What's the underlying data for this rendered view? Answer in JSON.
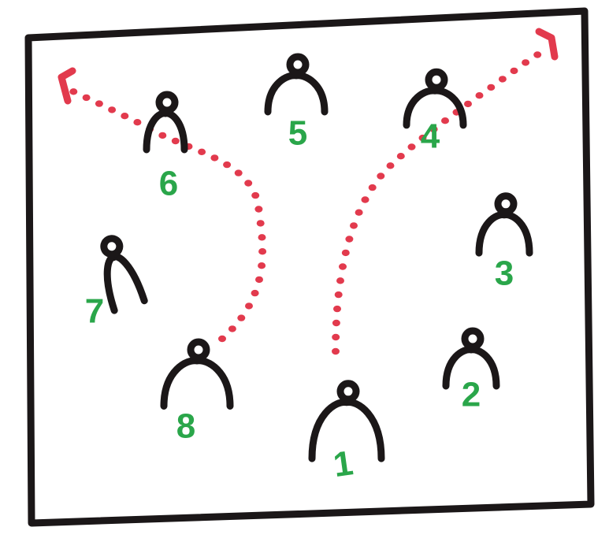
{
  "colors": {
    "player": "#1b1718",
    "number": "#2aa64a",
    "path": "#e23a4d",
    "border": "#1b1718",
    "background": "#ffffff"
  },
  "players": [
    {
      "id": "player-1",
      "number": "1",
      "icon": "player-marker-icon"
    },
    {
      "id": "player-2",
      "number": "2",
      "icon": "player-marker-icon"
    },
    {
      "id": "player-3",
      "number": "3",
      "icon": "player-marker-icon"
    },
    {
      "id": "player-4",
      "number": "4",
      "icon": "player-marker-icon"
    },
    {
      "id": "player-5",
      "number": "5",
      "icon": "player-marker-icon"
    },
    {
      "id": "player-6",
      "number": "6",
      "icon": "player-marker-icon"
    },
    {
      "id": "player-7",
      "number": "7",
      "icon": "player-marker-icon"
    },
    {
      "id": "player-8",
      "number": "8",
      "icon": "player-marker-icon"
    }
  ],
  "movement_paths": [
    {
      "id": "path-from-8",
      "from": "8",
      "style": "dotted",
      "arrow": "arrow-icon"
    },
    {
      "id": "path-from-1",
      "from": "1",
      "style": "dotted",
      "arrow": "arrow-icon"
    }
  ]
}
